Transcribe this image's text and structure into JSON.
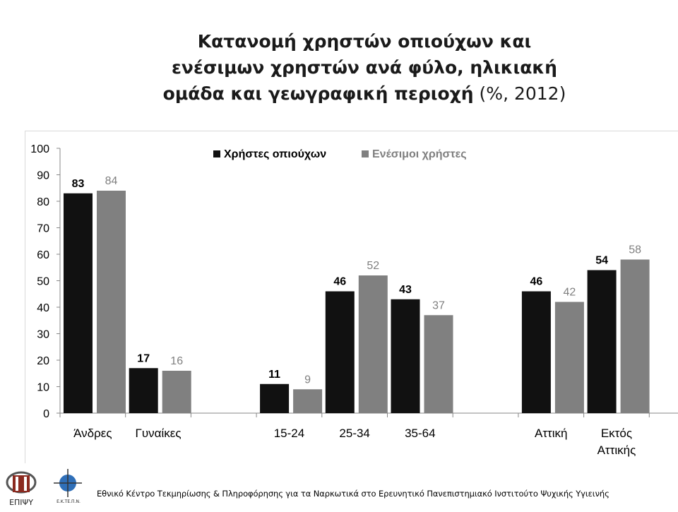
{
  "title": {
    "line1": "Κατανομή χρηστών οπιούχων και",
    "line2": "ενέσιμων χρηστών ανά φύλο, ηλικιακή",
    "line3_bold": "ομάδα και γεωγραφική περιοχή",
    "line3_normal": " (%, 2012)"
  },
  "chart_data": {
    "type": "bar",
    "categories": [
      "Άνδρες",
      "Γυναίκες",
      "15-24",
      "25-34",
      "35-64",
      "Αττική",
      "Εκτός Αττικής"
    ],
    "category_lines": [
      [
        "Άνδρες"
      ],
      [
        "Γυναίκες"
      ],
      [
        "15-24"
      ],
      [
        "25-34"
      ],
      [
        "35-64"
      ],
      [
        "Αττική"
      ],
      [
        "Εκτός",
        "Αττικής"
      ]
    ],
    "series": [
      {
        "name": "Χρήστες οπιούχων",
        "color": "#111111",
        "label_color": "#000000",
        "values": [
          83,
          17,
          11,
          46,
          43,
          46,
          54
        ]
      },
      {
        "name": "Ενέσιμοι χρήστες",
        "color": "#808080",
        "label_color": "#7f7f7f",
        "values": [
          84,
          16,
          9,
          52,
          37,
          42,
          58
        ]
      }
    ],
    "groups": [
      [
        0,
        1
      ],
      [
        2,
        3,
        4
      ],
      [
        5,
        6
      ]
    ],
    "ylim": [
      0,
      100
    ],
    "yticks": [
      0,
      10,
      20,
      30,
      40,
      50,
      60,
      70,
      80,
      90,
      100
    ],
    "legend_position": "top-center",
    "grid": false
  },
  "footer": {
    "text": "Εθνικό Κέντρο Τεκμηρίωσης & Πληροφόρησης για τα Ναρκωτικά στο Ερευνητικό Πανεπιστημιακό Ινστιτούτο Ψυχικής Υγιεινής",
    "logo1_label": "ΕΠΙΨΥ",
    "logo2_label": "Ε.Κ.ΤΕ.Π.Ν."
  }
}
